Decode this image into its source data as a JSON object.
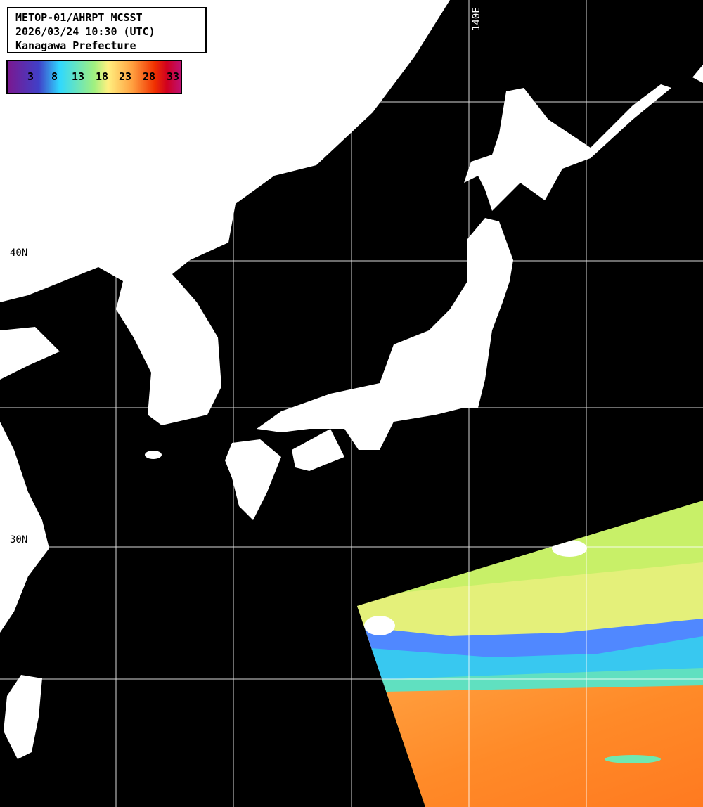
{
  "header": {
    "line1": "METOP-01/AHRPT MCSST",
    "line2": "2026/03/24 10:30 (UTC)",
    "line3": "Kanagawa Prefecture"
  },
  "colorbar": {
    "labels": [
      "3",
      "8",
      "13",
      "18",
      "23",
      "28",
      "33"
    ],
    "unit_colors": [
      "#7a1890",
      "#4040c8",
      "#2fd8ff",
      "#a0f080",
      "#fff080",
      "#ffa040",
      "#f03000",
      "#c01070"
    ]
  },
  "grid": {
    "lat_40": "40N",
    "lat_30": "30N",
    "lon_140": "140E"
  },
  "colors": {
    "sea_no_data": "#000000",
    "land": "#ffffff",
    "grid": "#ffffff",
    "sst_cool": "#3cc8f8",
    "sst_mid": "#d8f070",
    "sst_warm": "#ff8a28"
  }
}
